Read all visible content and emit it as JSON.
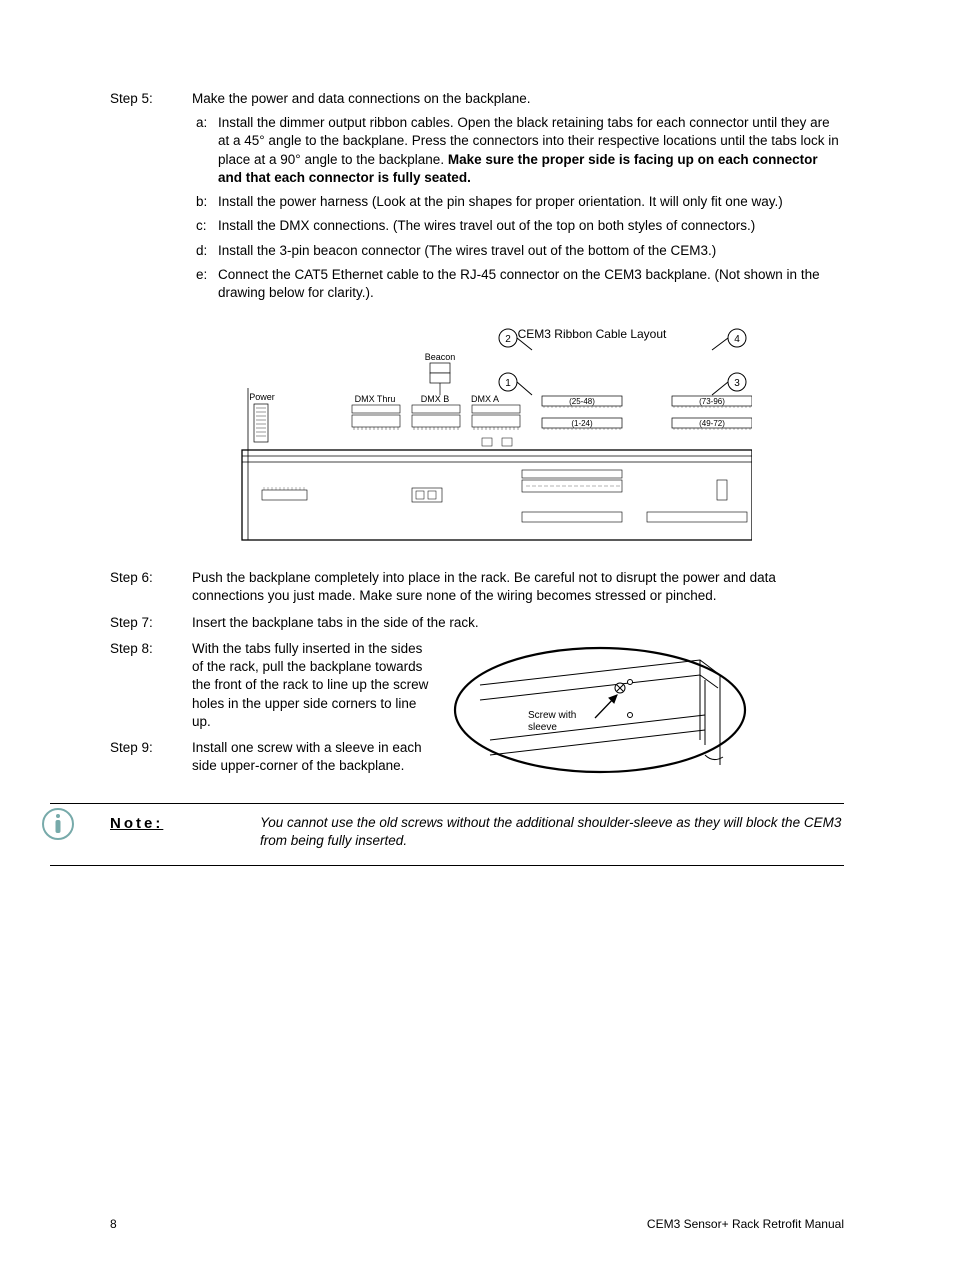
{
  "steps": {
    "s5": {
      "label": "Step 5:",
      "text": "Make the power and data connections on the backplane."
    },
    "s5a": {
      "label": "a:",
      "text1": "Install the dimmer output ribbon cables. Open the black retaining tabs for each connector until they are at a 45° angle to the backplane. Press the connectors into their respective locations until the tabs lock in place at a 90° angle to the backplane. ",
      "bold": "Make sure the proper side is facing up on each connector and that each connector is fully seated."
    },
    "s5b": {
      "label": "b:",
      "text": "Install the power harness (Look at the pin shapes for proper orientation. It will only fit one way.)"
    },
    "s5c": {
      "label": "c:",
      "text": "Install the DMX connections. (The wires travel out of the top on both styles of connectors.)"
    },
    "s5d": {
      "label": "d:",
      "text": "Install the 3-pin beacon connector (The wires travel out of the bottom of the CEM3.)"
    },
    "s5e": {
      "label": "e:",
      "text": "Connect the CAT5 Ethernet cable to the RJ-45 connector on the CEM3 backplane. (Not shown in the drawing below for clarity.)."
    },
    "s6": {
      "label": "Step 6:",
      "text": "Push the backplane completely into place in the rack. Be careful not to disrupt the power and data connections you just made. Make sure none of the wiring becomes stressed or pinched."
    },
    "s7": {
      "label": "Step 7:",
      "text": "Insert the backplane tabs in the side of the rack."
    },
    "s8": {
      "label": "Step 8:",
      "text": "With the tabs fully inserted in the sides of the rack, pull the backplane towards the front of the rack to line up the screw holes in the upper side corners to line up."
    },
    "s9": {
      "label": "Step 9:",
      "text": "Install one screw with a sleeve in each side upper-corner of the backplane."
    }
  },
  "diagram1": {
    "title": "CEM3 Ribbon Cable Layout",
    "power": "Power",
    "beacon": "Beacon",
    "dmx_thru": "DMX Thru",
    "dmx_b": "DMX B",
    "dmx_a": "DMX A",
    "c1": "1",
    "c2": "2",
    "c3": "3",
    "c4": "4",
    "r1": "(25-48)",
    "r2": "(73-96)",
    "r3": "(1-24)",
    "r4": "(49-72)"
  },
  "diagram2": {
    "label": "Screw with sleeve"
  },
  "note": {
    "label": "Note:",
    "text": "You cannot use the old screws without the additional shoulder-sleeve as they will block the CEM3 from being fully inserted."
  },
  "footer": {
    "page": "8",
    "title": "CEM3 Sensor+ Rack Retrofit Manual"
  },
  "colors": {
    "line": "#000",
    "fill_light": "#fff"
  }
}
